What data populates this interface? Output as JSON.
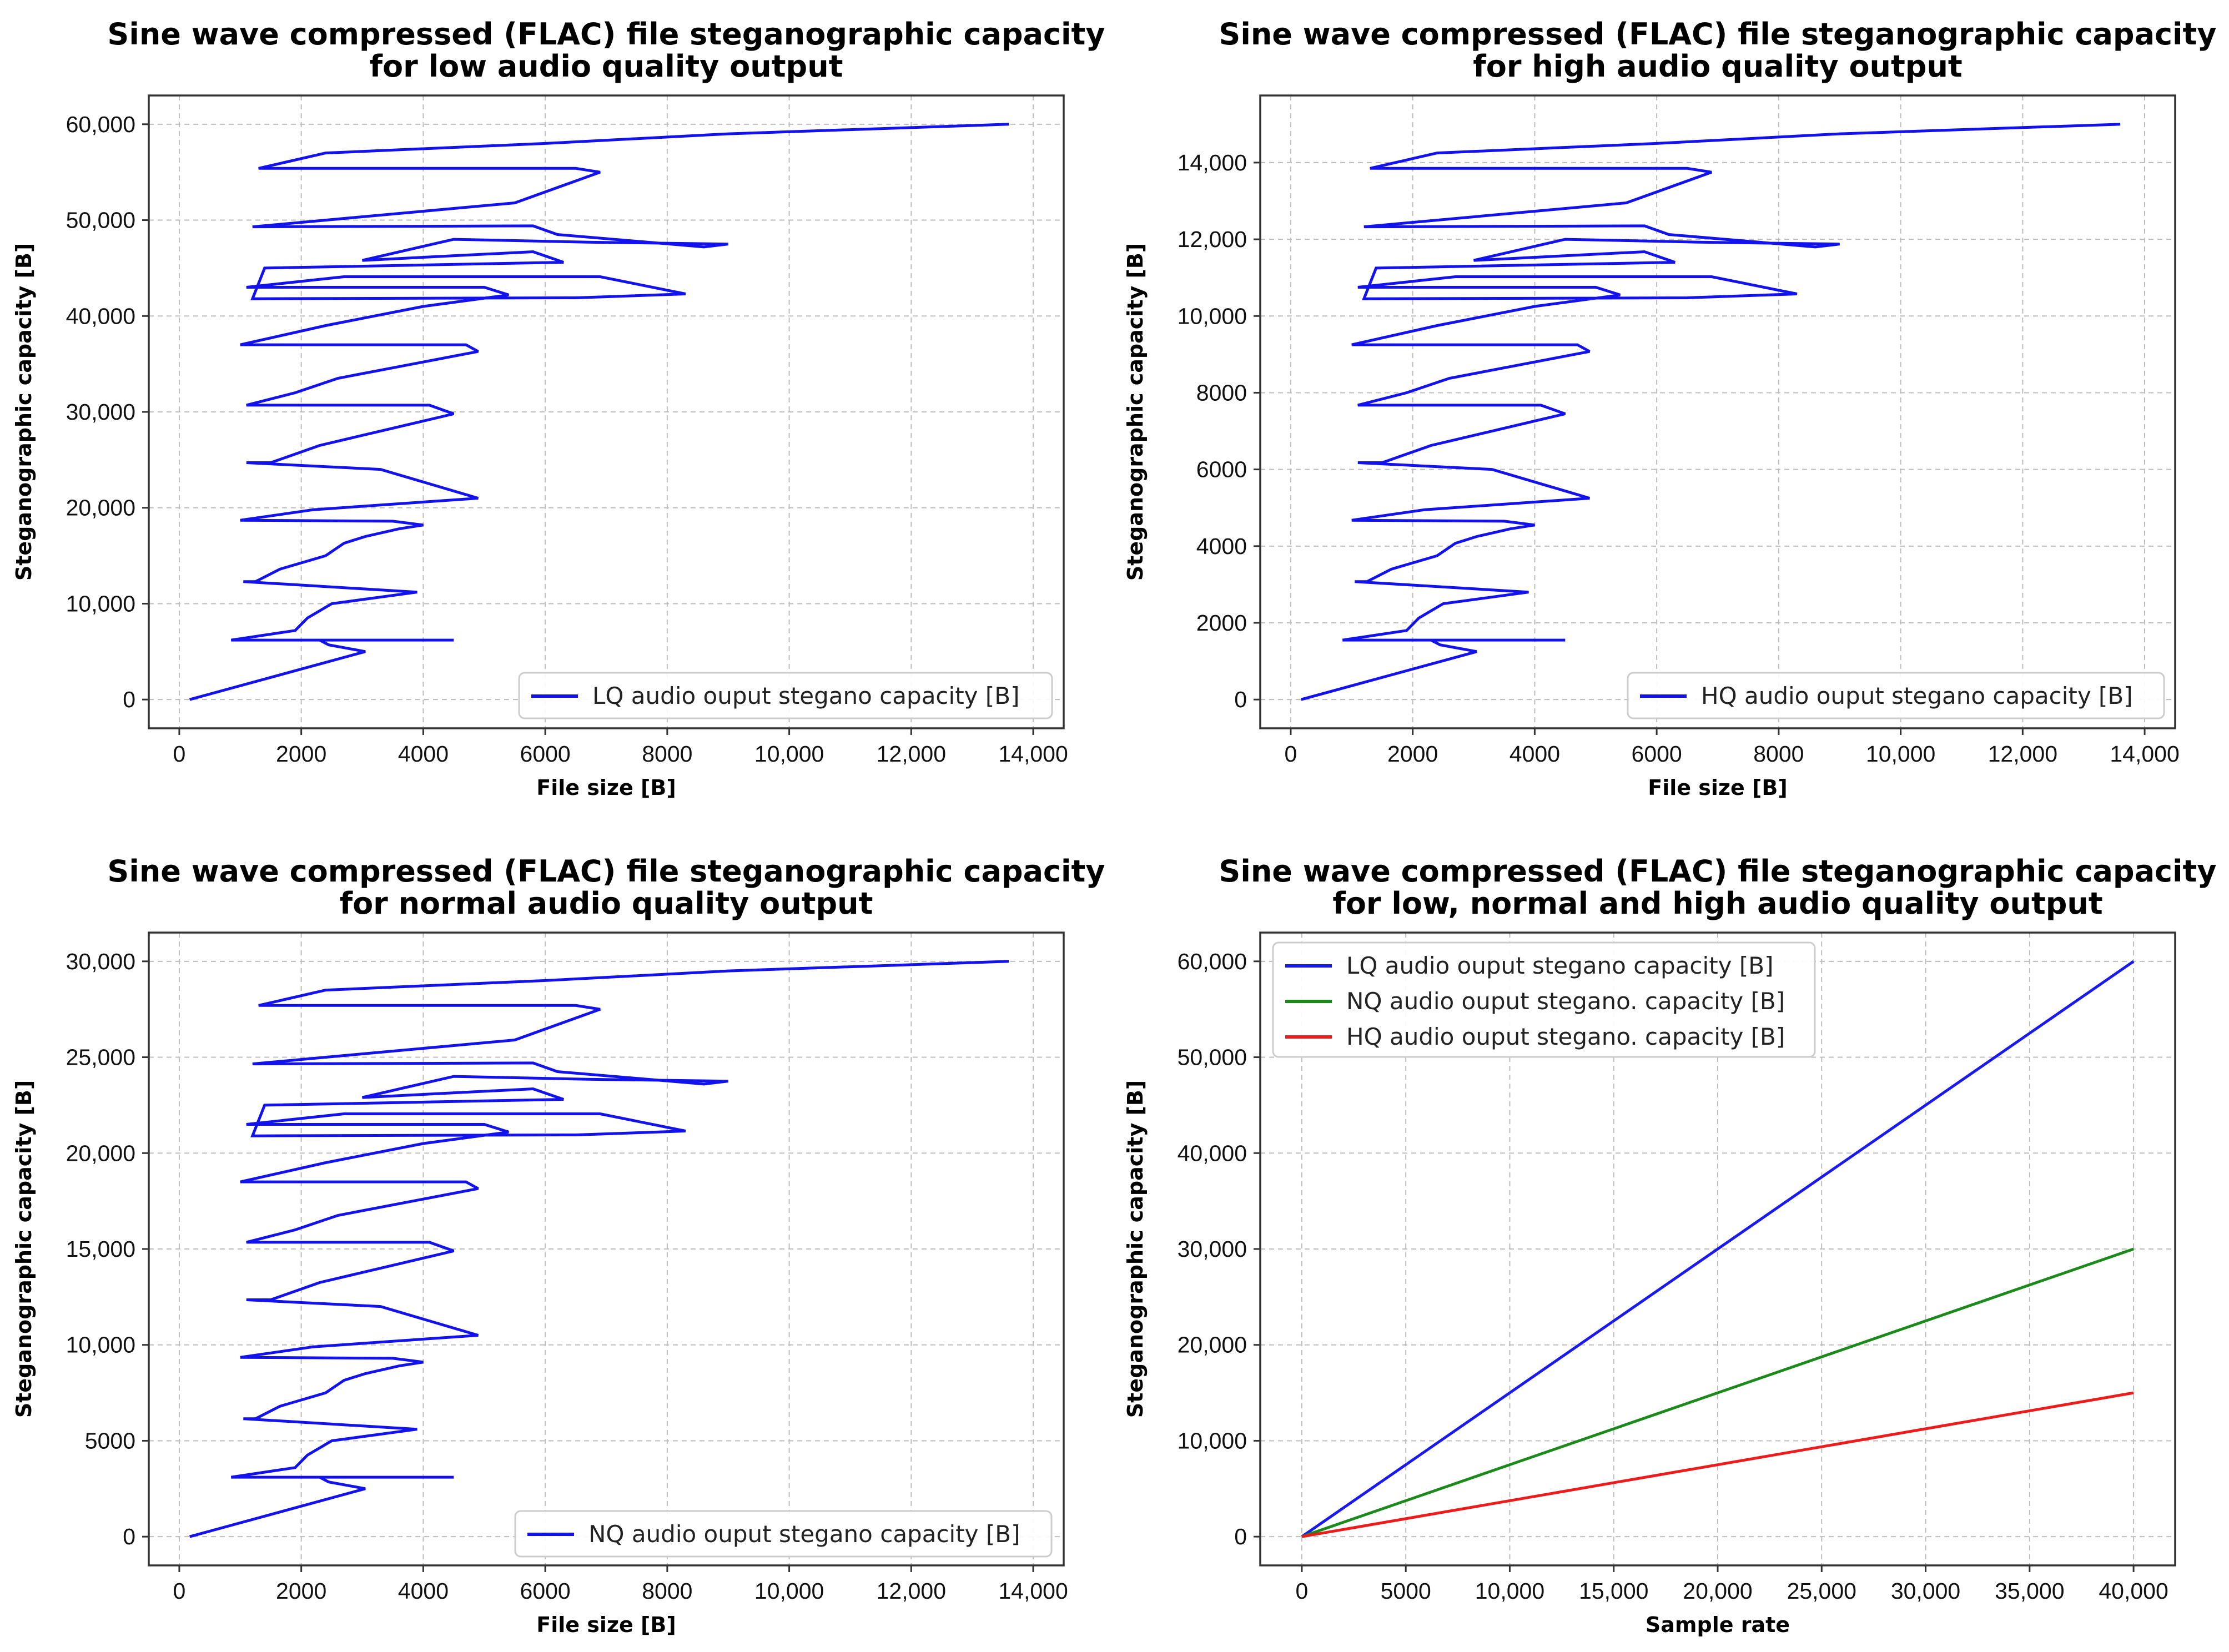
{
  "chart_data": [
    {
      "type": "line",
      "title": [
        "Sine wave compressed (FLAC) file steganographic capacity",
        "for low audio quality output"
      ],
      "xlabel": "File size [B]",
      "ylabel": "Steganographic capacity [B]",
      "xlim": [
        -500,
        14500
      ],
      "ylim": [
        -3000,
        63000
      ],
      "xticks": [
        0,
        2000,
        4000,
        6000,
        8000,
        10000,
        12000,
        14000
      ],
      "xtick_labels": [
        "0",
        "2000",
        "4000",
        "6000",
        "8000",
        "10,000",
        "12,000",
        "14,000"
      ],
      "yticks": [
        0,
        10000,
        20000,
        30000,
        40000,
        50000,
        60000
      ],
      "ytick_labels": [
        "0",
        "10,000",
        "20,000",
        "30,000",
        "40,000",
        "50,000",
        "60,000"
      ],
      "grid": true,
      "legend": "lower-right",
      "series": [
        {
          "name": "LQ audio ouput stegano capacity [B]",
          "color": "#1212ee",
          "x": [
            170,
            3050,
            2450,
            2300,
            4500,
            850,
            1900,
            2100,
            2500,
            3900,
            1050,
            1250,
            1650,
            2400,
            2700,
            3050,
            3600,
            4000,
            3500,
            1000,
            2200,
            4900,
            3300,
            1100,
            1500,
            2300,
            4500,
            4100,
            1100,
            1900,
            2600,
            4900,
            4700,
            1000,
            2400,
            4000,
            5400,
            5000,
            1100,
            2700,
            6900,
            8300,
            6500,
            1200,
            1400,
            6300,
            5800,
            3000,
            4500,
            6700,
            9000,
            8600,
            6200,
            5800,
            1200,
            5500,
            6900,
            6500,
            1300,
            2400,
            6000,
            9000,
            13600
          ],
          "y": [
            0,
            5000,
            5700,
            6200,
            6200,
            6200,
            7200,
            8500,
            10000,
            11200,
            12300,
            12300,
            13600,
            15000,
            16300,
            17000,
            17800,
            18200,
            18600,
            18700,
            19800,
            21000,
            24000,
            24700,
            24700,
            26500,
            29800,
            30700,
            30700,
            32000,
            33500,
            36300,
            37000,
            37000,
            39000,
            41000,
            42200,
            43000,
            43000,
            44100,
            44100,
            42300,
            41900,
            41800,
            45000,
            45600,
            46700,
            45800,
            48000,
            47700,
            47500,
            47200,
            48500,
            49400,
            49300,
            51800,
            55000,
            55400,
            55400,
            57000,
            58000,
            59000,
            60000
          ]
        }
      ]
    },
    {
      "type": "line",
      "title": [
        "Sine wave compressed (FLAC) file steganographic capacity",
        "for high audio quality output"
      ],
      "xlabel": "File size [B]",
      "ylabel": "Steganographic capacity [B]",
      "xlim": [
        -500,
        14500
      ],
      "ylim": [
        -750,
        15750
      ],
      "xticks": [
        0,
        2000,
        4000,
        6000,
        8000,
        10000,
        12000,
        14000
      ],
      "xtick_labels": [
        "0",
        "2000",
        "4000",
        "6000",
        "8000",
        "10,000",
        "12,000",
        "14,000"
      ],
      "yticks": [
        0,
        2000,
        4000,
        6000,
        8000,
        10000,
        12000,
        14000
      ],
      "ytick_labels": [
        "0",
        "2000",
        "4000",
        "6000",
        "8000",
        "10,000",
        "12,000",
        "14,000"
      ],
      "grid": true,
      "legend": "lower-right",
      "series": [
        {
          "name": "HQ audio ouput stegano capacity [B]",
          "color": "#1212ee",
          "x": [
            170,
            3050,
            2450,
            2300,
            4500,
            850,
            1900,
            2100,
            2500,
            3900,
            1050,
            1250,
            1650,
            2400,
            2700,
            3050,
            3600,
            4000,
            3500,
            1000,
            2200,
            4900,
            3300,
            1100,
            1500,
            2300,
            4500,
            4100,
            1100,
            1900,
            2600,
            4900,
            4700,
            1000,
            2400,
            4000,
            5400,
            5000,
            1100,
            2700,
            6900,
            8300,
            6500,
            1200,
            1400,
            6300,
            5800,
            3000,
            4500,
            6700,
            9000,
            8600,
            6200,
            5800,
            1200,
            5500,
            6900,
            6500,
            1300,
            2400,
            6000,
            9000,
            13600
          ],
          "y": [
            0,
            1250,
            1425,
            1550,
            1550,
            1550,
            1800,
            2125,
            2500,
            2800,
            3075,
            3075,
            3400,
            3750,
            4075,
            4250,
            4450,
            4550,
            4650,
            4675,
            4950,
            5250,
            6000,
            6175,
            6175,
            6625,
            7450,
            7675,
            7675,
            8000,
            8375,
            9075,
            9250,
            9250,
            9750,
            10250,
            10550,
            10750,
            10750,
            11025,
            11025,
            10575,
            10475,
            10450,
            11250,
            11400,
            11675,
            11450,
            12000,
            11925,
            11875,
            11800,
            12125,
            12350,
            12325,
            12950,
            13750,
            13850,
            13850,
            14250,
            14500,
            14750,
            15000
          ]
        }
      ]
    },
    {
      "type": "line",
      "title": [
        "Sine wave compressed (FLAC) file steganographic capacity",
        "for normal audio quality output"
      ],
      "xlabel": "File size [B]",
      "ylabel": "Steganographic capacity [B]",
      "xlim": [
        -500,
        14500
      ],
      "ylim": [
        -1500,
        31500
      ],
      "xticks": [
        0,
        2000,
        4000,
        6000,
        8000,
        10000,
        12000,
        14000
      ],
      "xtick_labels": [
        "0",
        "2000",
        "4000",
        "6000",
        "8000",
        "10,000",
        "12,000",
        "14,000"
      ],
      "yticks": [
        0,
        5000,
        10000,
        15000,
        20000,
        25000,
        30000
      ],
      "ytick_labels": [
        "0",
        "5000",
        "10,000",
        "15,000",
        "20,000",
        "25,000",
        "30,000"
      ],
      "grid": true,
      "legend": "lower-right",
      "series": [
        {
          "name": "NQ audio ouput stegano capacity [B]",
          "color": "#1212ee",
          "x": [
            170,
            3050,
            2450,
            2300,
            4500,
            850,
            1900,
            2100,
            2500,
            3900,
            1050,
            1250,
            1650,
            2400,
            2700,
            3050,
            3600,
            4000,
            3500,
            1000,
            2200,
            4900,
            3300,
            1100,
            1500,
            2300,
            4500,
            4100,
            1100,
            1900,
            2600,
            4900,
            4700,
            1000,
            2400,
            4000,
            5400,
            5000,
            1100,
            2700,
            6900,
            8300,
            6500,
            1200,
            1400,
            6300,
            5800,
            3000,
            4500,
            6700,
            9000,
            8600,
            6200,
            5800,
            1200,
            5500,
            6900,
            6500,
            1300,
            2400,
            6000,
            9000,
            13600
          ],
          "y": [
            0,
            2500,
            2850,
            3100,
            3100,
            3100,
            3600,
            4250,
            5000,
            5600,
            6150,
            6150,
            6800,
            7500,
            8150,
            8500,
            8900,
            9100,
            9300,
            9350,
            9900,
            10500,
            12000,
            12350,
            12350,
            13250,
            14900,
            15350,
            15350,
            16000,
            16750,
            18150,
            18500,
            18500,
            19500,
            20500,
            21100,
            21500,
            21500,
            22050,
            22050,
            21150,
            20950,
            20900,
            22500,
            22800,
            23350,
            22900,
            24000,
            23850,
            23750,
            23600,
            24250,
            24700,
            24650,
            25900,
            27500,
            27700,
            27700,
            28500,
            29000,
            29500,
            30000
          ]
        }
      ]
    },
    {
      "type": "line",
      "title": [
        "Sine wave compressed (FLAC) file steganographic capacity",
        "for low, normal and high audio quality output"
      ],
      "xlabel": "Sample rate",
      "ylabel": "Steganographic capacity [B]",
      "xlim": [
        -2000,
        42000
      ],
      "ylim": [
        -3000,
        63000
      ],
      "xticks": [
        0,
        5000,
        10000,
        15000,
        20000,
        25000,
        30000,
        35000,
        40000
      ],
      "xtick_labels": [
        "0",
        "5000",
        "10,000",
        "15,000",
        "20,000",
        "25,000",
        "30,000",
        "35,000",
        "40,000"
      ],
      "yticks": [
        0,
        10000,
        20000,
        30000,
        40000,
        50000,
        60000
      ],
      "ytick_labels": [
        "0",
        "10,000",
        "20,000",
        "30,000",
        "40,000",
        "50,000",
        "60,000"
      ],
      "grid": true,
      "legend": "upper-left",
      "series": [
        {
          "name": "LQ audio ouput stegano capacity [B]",
          "color": "#1a1aee",
          "x": [
            0,
            40000
          ],
          "y": [
            0,
            60000
          ]
        },
        {
          "name": "NQ audio ouput stegano. capacity [B]",
          "color": "#1b8a1b",
          "x": [
            0,
            40000
          ],
          "y": [
            0,
            30000
          ]
        },
        {
          "name": "HQ audio ouput stegano. capacity [B]",
          "color": "#ee1b1b",
          "x": [
            0,
            40000
          ],
          "y": [
            0,
            15000
          ]
        }
      ]
    }
  ]
}
